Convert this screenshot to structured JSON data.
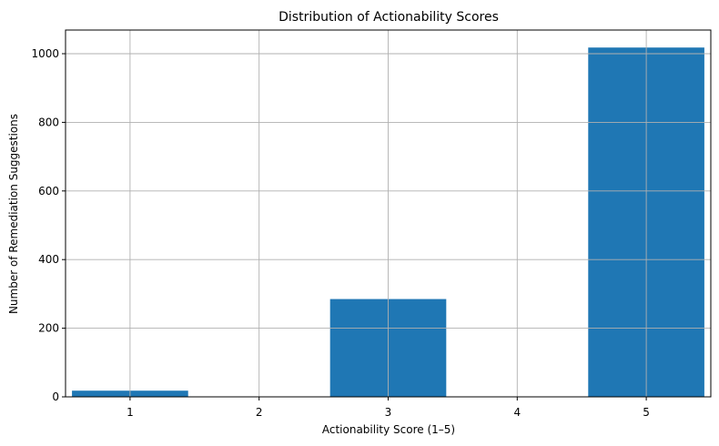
{
  "chart_data": {
    "type": "bar",
    "title": "Distribution of Actionability Scores",
    "xlabel": "Actionability Score (1–5)",
    "ylabel": "Number of Remediation Suggestions",
    "categories": [
      "1",
      "2",
      "3",
      "4",
      "5"
    ],
    "x": [
      1,
      2,
      3,
      4,
      5
    ],
    "values": [
      18,
      0,
      285,
      0,
      1018
    ],
    "ylim": [
      0,
      1069
    ],
    "xlim": [
      0.5,
      5.5
    ],
    "yticks": [
      0,
      200,
      400,
      600,
      800,
      1000
    ],
    "bar_width": 0.9,
    "grid": true,
    "color": "#1f77b4"
  }
}
